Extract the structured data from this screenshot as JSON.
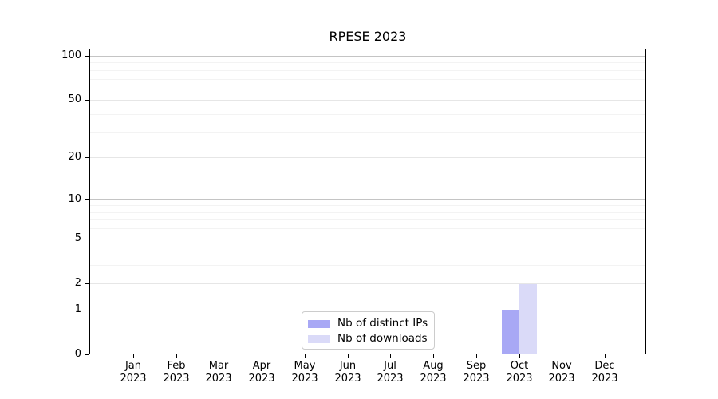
{
  "chart_data": {
    "type": "bar",
    "title": "RPESE 2023",
    "yscale": "log1p",
    "grid": true,
    "categories": [
      "Jan",
      "Feb",
      "Mar",
      "Apr",
      "May",
      "Jun",
      "Jul",
      "Aug",
      "Sep",
      "Oct",
      "Nov",
      "Dec"
    ],
    "category_sublabel": "2023",
    "series": [
      {
        "name": "Nb of distinct IPs",
        "color": "#a8a8f5",
        "values": [
          0,
          0,
          0,
          0,
          0,
          0,
          0,
          0,
          0,
          1,
          0,
          0
        ]
      },
      {
        "name": "Nb of downloads",
        "color": "#dadaf8",
        "values": [
          0,
          0,
          0,
          0,
          0,
          0,
          0,
          0,
          0,
          2,
          0,
          0
        ]
      }
    ],
    "y_ticks": [
      0,
      1,
      2,
      5,
      10,
      20,
      50,
      100
    ],
    "y_gridlines_strong": [
      1,
      10,
      100
    ],
    "y_gridlines_light": [
      2,
      5,
      20,
      50
    ],
    "y_gridlines_minor": [
      3,
      4,
      6,
      7,
      8,
      9,
      30,
      40,
      60,
      70,
      80,
      90
    ],
    "ylim": [
      0,
      110
    ],
    "xlabel": "",
    "ylabel": "",
    "legend_position": "bottom-center",
    "colors": {
      "grid_strong": "#c4c4c4",
      "grid_light": "#e6e6e6",
      "grid_minor": "#f3f3f3",
      "axis": "#000000",
      "legend_border": "#cccccc",
      "background": "#ffffff"
    }
  }
}
